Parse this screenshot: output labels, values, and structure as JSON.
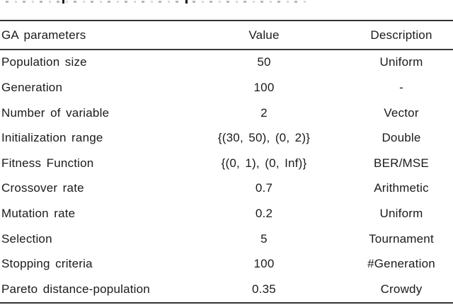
{
  "table": {
    "columns": [
      "GA parameters",
      "Value",
      "Description"
    ],
    "rows": [
      {
        "parameter": "Population size",
        "value": "50",
        "description": "Uniform"
      },
      {
        "parameter": "Generation",
        "value": "100",
        "description": "-"
      },
      {
        "parameter": "Number of variable",
        "value": "2",
        "description": "Vector"
      },
      {
        "parameter": "Initialization range",
        "value": "{(30, 50), (0, 2)}",
        "description": "Double"
      },
      {
        "parameter": "Fitness Function",
        "value": "{(0, 1), (0, Inf)}",
        "description": "BER/MSE"
      },
      {
        "parameter": "Crossover rate",
        "value": "0.7",
        "description": "Arithmetic"
      },
      {
        "parameter": "Mutation rate",
        "value": "0.2",
        "description": "Uniform"
      },
      {
        "parameter": "Selection",
        "value": "5",
        "description": "Tournament"
      },
      {
        "parameter": "Stopping criteria",
        "value": "100",
        "description": "#Generation"
      },
      {
        "parameter": "Pareto distance-population",
        "value": "0.35",
        "description": "Crowdy"
      }
    ]
  },
  "colors": {
    "text": "#1b1b1b",
    "rule": "#333333",
    "background": "#ffffff"
  }
}
